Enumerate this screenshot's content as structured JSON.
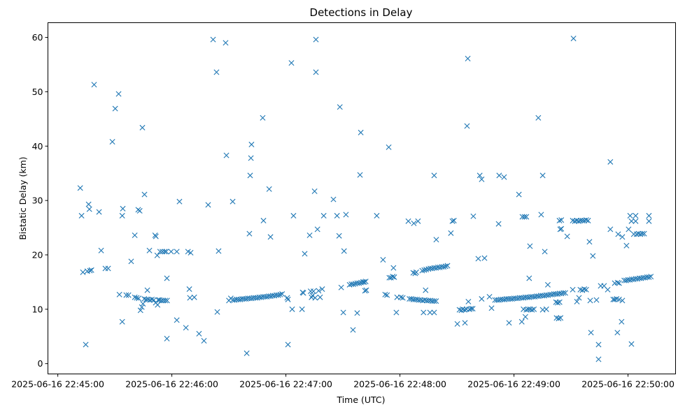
{
  "chart_data": {
    "type": "scatter",
    "title": "Detections in Delay",
    "xlabel": "Time (UTC)",
    "ylabel": "Bistatic Delay (km)",
    "x_units": "seconds after 2025-06-16 22:45:00 UTC",
    "xlim": [
      -5.2,
      325
    ],
    "ylim": [
      -1.9,
      62.7
    ],
    "grid": false,
    "marker": "x",
    "color": "#1f77b4",
    "x_ticks": [
      {
        "value": 0,
        "label": "2025-06-16 22:45:00"
      },
      {
        "value": 60,
        "label": "2025-06-16 22:46:00"
      },
      {
        "value": 120,
        "label": "2025-06-16 22:47:00"
      },
      {
        "value": 180,
        "label": "2025-06-16 22:48:00"
      },
      {
        "value": 240,
        "label": "2025-06-16 22:49:00"
      },
      {
        "value": 300,
        "label": "2025-06-16 22:50:00"
      }
    ],
    "y_ticks": [
      {
        "value": 0,
        "label": "0"
      },
      {
        "value": 10,
        "label": "10"
      },
      {
        "value": 20,
        "label": "20"
      },
      {
        "value": 30,
        "label": "30"
      },
      {
        "value": 40,
        "label": "40"
      },
      {
        "value": 50,
        "label": "50"
      },
      {
        "value": 60,
        "label": "60"
      }
    ],
    "points": [
      [
        11.8,
        32.3
      ],
      [
        12.5,
        27.2
      ],
      [
        13.2,
        16.8
      ],
      [
        14.7,
        3.5
      ],
      [
        15.5,
        17.0
      ],
      [
        16.2,
        29.3
      ],
      [
        16.6,
        28.4
      ],
      [
        16.9,
        17.1
      ],
      [
        17.7,
        17.2
      ],
      [
        19.1,
        51.3
      ],
      [
        21.7,
        27.9
      ],
      [
        22.8,
        20.8
      ],
      [
        25.0,
        17.5
      ],
      [
        26.5,
        17.5
      ],
      [
        28.7,
        40.8
      ],
      [
        30.2,
        46.9
      ],
      [
        32.0,
        49.6
      ],
      [
        32.4,
        12.7
      ],
      [
        33.9,
        27.2
      ],
      [
        33.9,
        7.7
      ],
      [
        34.2,
        28.5
      ],
      [
        36.0,
        12.6
      ],
      [
        37.2,
        12.6
      ],
      [
        38.6,
        18.8
      ],
      [
        40.5,
        23.6
      ],
      [
        42.3,
        28.3
      ],
      [
        43.1,
        28.1
      ],
      [
        44.5,
        43.4
      ],
      [
        45.6,
        31.1
      ],
      [
        47.1,
        13.5
      ],
      [
        48.2,
        20.8
      ],
      [
        51.2,
        23.6
      ],
      [
        51.6,
        23.4
      ],
      [
        52.3,
        19.9
      ],
      [
        53.8,
        20.6
      ],
      [
        55.0,
        20.6
      ],
      [
        56.2,
        20.6
      ],
      [
        57.0,
        20.6
      ],
      [
        57.4,
        15.7
      ],
      [
        57.4,
        4.6
      ],
      [
        59.6,
        20.6
      ],
      [
        62.6,
        20.6
      ],
      [
        62.6,
        8.0
      ],
      [
        64.0,
        29.8
      ],
      [
        67.4,
        6.6
      ],
      [
        68.5,
        20.6
      ],
      [
        69.9,
        20.4
      ],
      [
        69.2,
        13.7
      ],
      [
        69.5,
        12.1
      ],
      [
        71.8,
        12.2
      ],
      [
        74.3,
        5.5
      ],
      [
        76.9,
        4.2
      ],
      [
        79.1,
        29.2
      ],
      [
        81.7,
        59.6
      ],
      [
        83.5,
        53.6
      ],
      [
        83.9,
        9.5
      ],
      [
        84.6,
        20.7
      ],
      [
        88.3,
        59.0
      ],
      [
        88.7,
        38.3
      ],
      [
        92.0,
        29.8
      ],
      [
        40.5,
        12.2
      ],
      [
        41.5,
        12.1
      ],
      [
        42.5,
        12.0
      ],
      [
        43.5,
        9.8
      ],
      [
        44.2,
        10.4
      ],
      [
        44.8,
        11.0
      ],
      [
        45.5,
        11.9
      ],
      [
        46.5,
        11.8
      ],
      [
        47.5,
        11.8
      ],
      [
        48.5,
        11.7
      ],
      [
        49.5,
        11.8
      ],
      [
        50.5,
        11.7
      ],
      [
        51.5,
        11.2
      ],
      [
        52.5,
        10.8
      ],
      [
        52.8,
        11.7
      ],
      [
        53.5,
        11.7
      ],
      [
        54.5,
        11.6
      ],
      [
        55.5,
        11.6
      ],
      [
        56.5,
        11.6
      ],
      [
        57.5,
        11.6
      ],
      [
        90.0,
        11.6
      ],
      [
        91.0,
        12.0
      ],
      [
        92.0,
        11.7
      ],
      [
        93.0,
        11.7
      ],
      [
        94.0,
        11.8
      ],
      [
        95.0,
        11.8
      ],
      [
        96.0,
        11.8
      ],
      [
        97.0,
        11.9
      ],
      [
        98.0,
        11.9
      ],
      [
        99.0,
        11.9
      ],
      [
        100.0,
        12.0
      ],
      [
        101.0,
        12.0
      ],
      [
        102.0,
        12.0
      ],
      [
        103.0,
        12.1
      ],
      [
        104.0,
        12.1
      ],
      [
        105.0,
        12.1
      ],
      [
        106.0,
        12.2
      ],
      [
        107.0,
        12.2
      ],
      [
        108.0,
        12.3
      ],
      [
        109.0,
        12.3
      ],
      [
        110.0,
        12.3
      ],
      [
        111.0,
        12.4
      ],
      [
        112.0,
        12.4
      ],
      [
        113.0,
        12.5
      ],
      [
        114.0,
        12.5
      ],
      [
        115.0,
        12.6
      ],
      [
        116.0,
        12.6
      ],
      [
        117.0,
        12.7
      ],
      [
        118.0,
        12.8
      ],
      [
        99.4,
        1.9
      ],
      [
        100.8,
        23.9
      ],
      [
        101.2,
        34.6
      ],
      [
        101.6,
        37.8
      ],
      [
        101.9,
        40.3
      ],
      [
        107.8,
        45.2
      ],
      [
        108.2,
        26.3
      ],
      [
        111.2,
        32.1
      ],
      [
        111.9,
        23.3
      ],
      [
        120.7,
        12.1
      ],
      [
        121.1,
        11.8
      ],
      [
        121.1,
        3.5
      ],
      [
        122.9,
        55.3
      ],
      [
        123.3,
        10.0
      ],
      [
        124.0,
        27.2
      ],
      [
        128.5,
        10.0
      ],
      [
        128.8,
        13.1
      ],
      [
        129.2,
        13.0
      ],
      [
        129.9,
        20.2
      ],
      [
        132.5,
        23.6
      ],
      [
        133.0,
        13.3
      ],
      [
        133.5,
        12.2
      ],
      [
        134.0,
        12.5
      ],
      [
        134.5,
        13.3
      ],
      [
        135.1,
        31.7
      ],
      [
        135.4,
        12.1
      ],
      [
        135.8,
        59.6
      ],
      [
        135.8,
        53.6
      ],
      [
        136.6,
        24.7
      ],
      [
        137.2,
        13.4
      ],
      [
        138.0,
        12.2
      ],
      [
        139.1,
        13.7
      ],
      [
        139.9,
        27.2
      ],
      [
        145.0,
        30.2
      ],
      [
        146.9,
        27.2
      ],
      [
        148.0,
        23.5
      ],
      [
        148.4,
        47.2
      ],
      [
        149.1,
        14.0
      ],
      [
        150.6,
        20.7
      ],
      [
        151.6,
        27.4
      ],
      [
        150.2,
        9.4
      ],
      [
        155.3,
        6.2
      ],
      [
        157.5,
        9.3
      ],
      [
        159.0,
        34.7
      ],
      [
        159.4,
        42.5
      ],
      [
        153.5,
        14.5
      ],
      [
        154.5,
        14.6
      ],
      [
        155.5,
        14.6
      ],
      [
        156.5,
        14.7
      ],
      [
        157.5,
        14.8
      ],
      [
        158.5,
        14.8
      ],
      [
        159.5,
        14.9
      ],
      [
        160.5,
        15.0
      ],
      [
        161.2,
        15.0
      ],
      [
        162.0,
        15.1
      ],
      [
        161.6,
        13.4
      ],
      [
        162.3,
        13.5
      ],
      [
        167.8,
        27.2
      ],
      [
        171.1,
        19.1
      ],
      [
        172.2,
        12.7
      ],
      [
        173.2,
        12.6
      ],
      [
        174.1,
        39.8
      ],
      [
        174.4,
        15.8
      ],
      [
        175.3,
        15.8
      ],
      [
        176.2,
        16.0
      ],
      [
        176.6,
        17.6
      ],
      [
        177.0,
        15.9
      ],
      [
        178.1,
        9.4
      ],
      [
        178.5,
        12.2
      ],
      [
        180.5,
        12.2
      ],
      [
        181.5,
        12.1
      ],
      [
        184.4,
        26.2
      ],
      [
        187.3,
        25.8
      ],
      [
        189.5,
        26.2
      ],
      [
        185.0,
        11.9
      ],
      [
        186.0,
        11.9
      ],
      [
        187.0,
        11.8
      ],
      [
        188.0,
        11.8
      ],
      [
        189.0,
        11.8
      ],
      [
        190.0,
        11.7
      ],
      [
        191.0,
        11.7
      ],
      [
        192.0,
        11.6
      ],
      [
        193.0,
        11.7
      ],
      [
        194.0,
        11.6
      ],
      [
        195.0,
        11.6
      ],
      [
        196.0,
        11.6
      ],
      [
        197.0,
        11.5
      ],
      [
        198.0,
        11.5
      ],
      [
        199.0,
        11.5
      ],
      [
        187.0,
        16.7
      ],
      [
        188.0,
        16.6
      ],
      [
        188.6,
        16.8
      ],
      [
        191.7,
        17.1
      ],
      [
        192.8,
        17.2
      ],
      [
        193.8,
        17.3
      ],
      [
        195.0,
        17.4
      ],
      [
        196.0,
        17.5
      ],
      [
        197.0,
        17.5
      ],
      [
        198.0,
        17.6
      ],
      [
        199.0,
        17.6
      ],
      [
        200.0,
        17.7
      ],
      [
        201.0,
        17.7
      ],
      [
        202.0,
        17.8
      ],
      [
        203.0,
        17.8
      ],
      [
        204.0,
        17.9
      ],
      [
        205.0,
        18.0
      ],
      [
        192.4,
        9.4
      ],
      [
        193.5,
        13.5
      ],
      [
        195.8,
        9.4
      ],
      [
        198.0,
        9.4
      ],
      [
        198.0,
        34.6
      ],
      [
        199.1,
        22.8
      ],
      [
        206.8,
        24.0
      ],
      [
        207.6,
        26.2
      ],
      [
        208.4,
        26.3
      ],
      [
        210.2,
        7.3
      ],
      [
        211.3,
        9.9
      ],
      [
        212.3,
        9.8
      ],
      [
        213.0,
        10.0
      ],
      [
        214.0,
        9.9
      ],
      [
        214.2,
        7.5
      ],
      [
        215.0,
        10.0
      ],
      [
        215.7,
        56.1
      ],
      [
        215.3,
        43.7
      ],
      [
        216.0,
        11.4
      ],
      [
        216.6,
        10.0
      ],
      [
        217.5,
        10.1
      ],
      [
        218.3,
        10.1
      ],
      [
        218.6,
        27.1
      ],
      [
        221.2,
        19.3
      ],
      [
        222.0,
        34.6
      ],
      [
        223.0,
        33.9
      ],
      [
        223.0,
        11.9
      ],
      [
        224.5,
        19.4
      ],
      [
        227.1,
        12.3
      ],
      [
        228.2,
        10.2
      ],
      [
        231.9,
        25.7
      ],
      [
        232.2,
        34.6
      ],
      [
        234.8,
        34.3
      ],
      [
        237.4,
        7.5
      ],
      [
        230.0,
        11.7
      ],
      [
        231.0,
        11.7
      ],
      [
        232.0,
        11.7
      ],
      [
        233.0,
        11.8
      ],
      [
        234.0,
        11.8
      ],
      [
        235.0,
        11.8
      ],
      [
        236.0,
        11.9
      ],
      [
        237.0,
        11.9
      ],
      [
        238.0,
        11.9
      ],
      [
        239.0,
        11.9
      ],
      [
        240.0,
        12.0
      ],
      [
        241.0,
        12.0
      ],
      [
        242.0,
        12.0
      ],
      [
        243.0,
        12.1
      ],
      [
        244.0,
        12.1
      ],
      [
        245.0,
        12.1
      ],
      [
        246.0,
        12.2
      ],
      [
        247.0,
        12.2
      ],
      [
        248.0,
        12.2
      ],
      [
        249.0,
        12.3
      ],
      [
        250.0,
        12.3
      ],
      [
        251.0,
        12.3
      ],
      [
        252.0,
        12.4
      ],
      [
        253.0,
        12.4
      ],
      [
        254.0,
        12.5
      ],
      [
        255.0,
        12.5
      ],
      [
        256.0,
        12.5
      ],
      [
        257.0,
        12.6
      ],
      [
        258.0,
        12.6
      ],
      [
        259.0,
        12.7
      ],
      [
        260.0,
        12.7
      ],
      [
        261.0,
        12.8
      ],
      [
        262.0,
        12.8
      ],
      [
        263.0,
        12.8
      ],
      [
        264.0,
        12.9
      ],
      [
        265.0,
        12.9
      ],
      [
        266.0,
        13.0
      ],
      [
        267.0,
        13.0
      ],
      [
        242.6,
        31.1
      ],
      [
        244.4,
        27.0
      ],
      [
        245.5,
        27.0
      ],
      [
        246.5,
        27.0
      ],
      [
        244.1,
        7.7
      ],
      [
        246.0,
        8.6
      ],
      [
        245.0,
        10.0
      ],
      [
        246.5,
        9.9
      ],
      [
        247.5,
        10.0
      ],
      [
        248.5,
        10.0
      ],
      [
        249.5,
        9.9
      ],
      [
        250.5,
        10.0
      ],
      [
        255.1,
        9.9
      ],
      [
        257.0,
        10.0
      ],
      [
        248.0,
        15.7
      ],
      [
        248.4,
        21.6
      ],
      [
        252.8,
        45.2
      ],
      [
        254.3,
        27.4
      ],
      [
        255.1,
        34.6
      ],
      [
        256.2,
        20.6
      ],
      [
        257.8,
        14.5
      ],
      [
        262.1,
        11.3
      ],
      [
        263.0,
        11.2
      ],
      [
        264.0,
        11.3
      ],
      [
        263.9,
        26.3
      ],
      [
        264.9,
        26.4
      ],
      [
        264.3,
        24.7
      ],
      [
        264.9,
        24.8
      ],
      [
        262.4,
        8.4
      ],
      [
        263.5,
        8.3
      ],
      [
        264.5,
        8.4
      ],
      [
        268.0,
        23.4
      ],
      [
        271.3,
        59.8
      ],
      [
        270.9,
        26.3
      ],
      [
        272.0,
        26.2
      ],
      [
        273.0,
        26.3
      ],
      [
        274.0,
        26.2
      ],
      [
        275.0,
        26.3
      ],
      [
        276.0,
        26.3
      ],
      [
        277.0,
        26.3
      ],
      [
        278.0,
        26.4
      ],
      [
        279.0,
        26.3
      ],
      [
        270.9,
        13.6
      ],
      [
        273.1,
        11.4
      ],
      [
        274.2,
        12.1
      ],
      [
        274.9,
        13.6
      ],
      [
        276.0,
        13.5
      ],
      [
        277.0,
        13.7
      ],
      [
        278.0,
        13.6
      ],
      [
        279.7,
        22.4
      ],
      [
        281.5,
        19.8
      ],
      [
        280.1,
        11.6
      ],
      [
        283.4,
        11.7
      ],
      [
        280.5,
        5.7
      ],
      [
        284.5,
        3.5
      ],
      [
        284.5,
        0.8
      ],
      [
        285.6,
        14.3
      ],
      [
        287.4,
        14.3
      ],
      [
        289.3,
        13.6
      ],
      [
        290.7,
        37.1
      ],
      [
        290.7,
        24.7
      ],
      [
        292.2,
        11.8
      ],
      [
        293.0,
        11.8
      ],
      [
        294.0,
        11.9
      ],
      [
        295.3,
        11.8
      ],
      [
        293.0,
        14.8
      ],
      [
        294.5,
        14.9
      ],
      [
        295.3,
        14.8
      ],
      [
        294.8,
        23.8
      ],
      [
        297.0,
        23.3
      ],
      [
        294.4,
        5.7
      ],
      [
        296.6,
        7.7
      ],
      [
        297.0,
        11.6
      ],
      [
        299.2,
        21.7
      ],
      [
        300.3,
        24.7
      ],
      [
        301.1,
        27.2
      ],
      [
        301.8,
        26.2
      ],
      [
        301.8,
        3.6
      ],
      [
        304.0,
        27.2
      ],
      [
        304.0,
        26.2
      ],
      [
        303.0,
        23.8
      ],
      [
        304.5,
        23.8
      ],
      [
        305.5,
        23.9
      ],
      [
        306.5,
        23.8
      ],
      [
        307.5,
        23.9
      ],
      [
        308.5,
        23.9
      ],
      [
        298.0,
        15.3
      ],
      [
        299.0,
        15.3
      ],
      [
        300.0,
        15.4
      ],
      [
        301.0,
        15.4
      ],
      [
        302.0,
        15.5
      ],
      [
        303.0,
        15.5
      ],
      [
        304.0,
        15.6
      ],
      [
        305.0,
        15.6
      ],
      [
        306.0,
        15.7
      ],
      [
        307.0,
        15.7
      ],
      [
        308.0,
        15.8
      ],
      [
        309.0,
        15.8
      ],
      [
        310.0,
        15.9
      ],
      [
        311.0,
        15.9
      ],
      [
        312.0,
        16.0
      ],
      [
        311.0,
        27.2
      ],
      [
        311.0,
        26.2
      ]
    ]
  }
}
